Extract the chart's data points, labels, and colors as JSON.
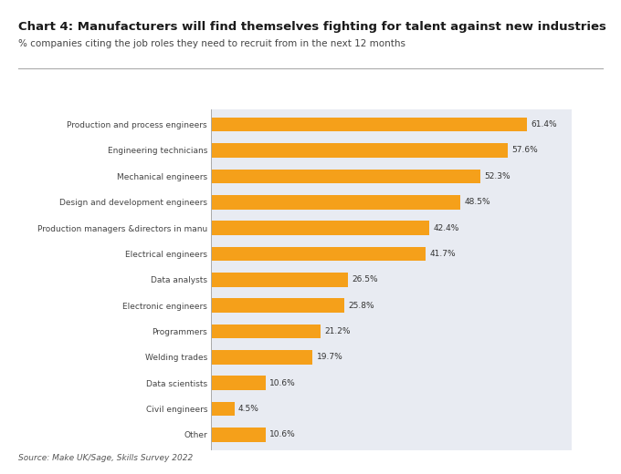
{
  "title": "Chart 4: Manufacturers will find themselves fighting for talent against new industries",
  "subtitle": "% companies citing the job roles they need to recruit from in the next 12 months",
  "source": "Source: Make UK/Sage, Skills Survey 2022",
  "categories": [
    "Other",
    "Civil engineers",
    "Data scientists",
    "Welding trades",
    "Programmers",
    "Electronic engineers",
    "Data analysts",
    "Electrical engineers",
    "Production managers &directors in manu",
    "Design and development engineers",
    "Mechanical engineers",
    "Engineering technicians",
    "Production and process engineers"
  ],
  "values": [
    10.6,
    4.5,
    10.6,
    19.7,
    21.2,
    25.8,
    26.5,
    41.7,
    42.4,
    48.5,
    52.3,
    57.6,
    61.4
  ],
  "bar_color": "#F5A01A",
  "outer_bg": "#FFFFFF",
  "inner_bg": "#E8EBF2",
  "title_fontsize": 9.5,
  "subtitle_fontsize": 7.5,
  "label_fontsize": 6.5,
  "value_fontsize": 6.5,
  "source_fontsize": 6.5,
  "xlim": [
    0,
    70
  ]
}
